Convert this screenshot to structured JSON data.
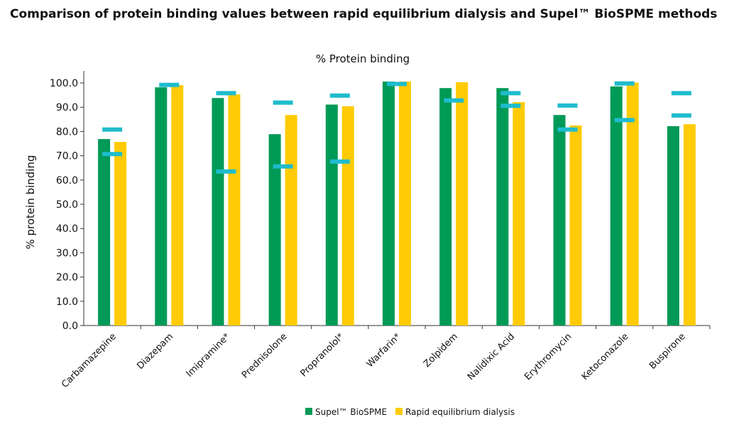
{
  "title": "Comparison of protein binding values between rapid equilibrium dialysis and Supel™ BioSPME methods",
  "chart_data": {
    "type": "bar",
    "title": "% Protein binding",
    "ylabel": "% protein binding",
    "xlabel": "",
    "ylim": [
      0,
      100
    ],
    "yticks": [
      "0.0",
      "10.0",
      "20.0",
      "30.0",
      "40.0",
      "50.0",
      "60.0",
      "70.0",
      "80.0",
      "90.0",
      "100.0"
    ],
    "grid": false,
    "legend_position": "bottom",
    "categories": [
      "Carbamazepine",
      "Diazepam",
      "Imipramine*",
      "Prednisolone",
      "Propranolol*",
      "Warfarin*",
      "Zolpidem",
      "Nalidixic Acid",
      "Erythromycin",
      "Ketoconazole",
      "Buspirone"
    ],
    "series": [
      {
        "name": "Supel™ BioSPME",
        "color": "#009a57",
        "values": [
          76.9,
          98.2,
          93.8,
          78.9,
          91.1,
          100.6,
          97.9,
          97.9,
          86.8,
          98.6,
          82.2
        ]
      },
      {
        "name": "Rapid equilibrium dialysis",
        "color": "#ffcb05",
        "values": [
          75.7,
          99.1,
          95.3,
          86.8,
          90.4,
          100.6,
          100.3,
          92.1,
          82.5,
          100.1,
          83.0
        ]
      }
    ],
    "reference_markers": {
      "color": "#1fbccd",
      "values": [
        [
          80.8,
          70.7
        ],
        [
          99.2
        ],
        [
          95.8,
          63.5
        ],
        [
          91.9,
          65.6
        ],
        [
          94.8,
          67.6
        ],
        [
          99.6
        ],
        [
          92.8
        ],
        [
          95.8,
          90.6
        ],
        [
          90.7,
          80.8
        ],
        [
          99.8,
          84.7
        ],
        [
          95.8,
          86.6
        ]
      ]
    }
  }
}
